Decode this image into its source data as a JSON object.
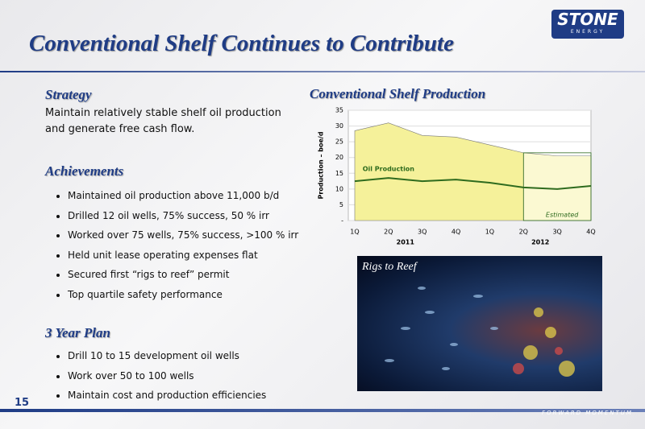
{
  "slide": {
    "title": "Conventional Shelf Continues to Contribute",
    "page_number": "15",
    "logo": {
      "name": "STONE",
      "sub": "ENERGY"
    },
    "footer": "FORWARD MOMENTUM",
    "sections": [
      {
        "heading": "Strategy",
        "text": "Maintain relatively stable shelf oil production and generate free cash flow."
      },
      {
        "heading": "Achievements",
        "bullets": [
          "Maintained oil production above 11,000 b/d",
          "Drilled 12 oil wells, 75% success, 50 % irr",
          "Worked over 75 wells, 75% success, >100 % irr",
          "Held unit lease operating expenses flat",
          "Secured first “rigs to reef” permit",
          "Top quartile safety performance"
        ]
      },
      {
        "heading": "3 Year Plan",
        "bullets": [
          "Drill 10 to 15 development oil wells",
          "Work over 50 to 100 wells",
          "Maintain cost and production efficiencies"
        ]
      }
    ],
    "photo_caption": "Rigs to Reef"
  },
  "chart_data": {
    "type": "area",
    "title": "Conventional Shelf Production",
    "y_label": "Production – boe/d",
    "categories": [
      "1Q",
      "2Q",
      "3Q",
      "4Q",
      "1Q",
      "2Q",
      "3Q",
      "4Q"
    ],
    "x_groups": [
      "2011",
      "2012"
    ],
    "series": [
      {
        "color": "#f5f19a",
        "values": [
          28.5,
          31,
          27,
          26.5,
          24,
          21.5,
          20.5,
          20.5
        ]
      },
      {
        "name": "Oil Production",
        "color": "#2e6b1e",
        "values": [
          12.5,
          13.5,
          12.5,
          13,
          12,
          10.5,
          10,
          11
        ]
      }
    ],
    "annotation": {
      "text": "Estimated",
      "from": 5,
      "color": "#fbf9d2"
    },
    "ylim": [
      0,
      35
    ],
    "yticks": [
      {
        "value": 0,
        "label": "-"
      },
      5,
      10,
      15,
      20,
      25,
      30,
      35
    ],
    "grid": true
  }
}
